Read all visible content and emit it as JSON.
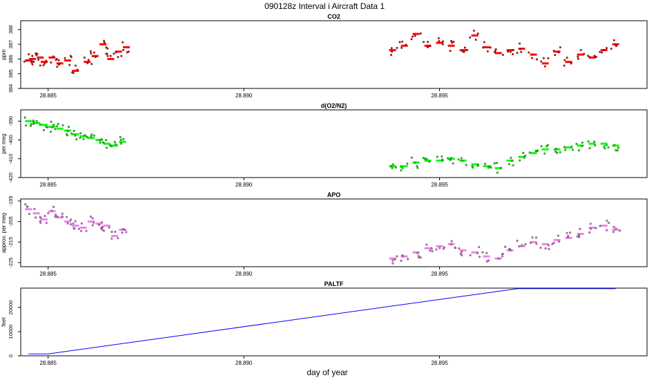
{
  "title": "090128z   Interval i Aircraft Data 1",
  "xlabel": "day of year",
  "x_ticks": [
    "28.885",
    "28.890",
    "28.895"
  ],
  "x_tick_values": [
    28.885,
    28.89,
    28.895
  ],
  "xlim": [
    28.8843,
    28.9003
  ],
  "colors": {
    "co2": "#ff0000",
    "o2n2": "#00ff00",
    "apo": "#ee82ee",
    "paltf": "#0000ff",
    "points_outline": "#000000"
  },
  "chart_data": [
    {
      "id": "co2",
      "type": "scatter",
      "title": "CO2",
      "ylabel": "ppm",
      "ylim": [
        384,
        388.6
      ],
      "y_ticks": [
        384,
        385,
        386,
        387,
        388
      ],
      "grid": false,
      "x": [
        28.8845,
        28.8846,
        28.8848,
        28.8849,
        28.8851,
        28.8853,
        28.8855,
        28.8857,
        28.886,
        28.8862,
        28.8864,
        28.8866,
        28.8868,
        28.887,
        28.8938,
        28.8941,
        28.8944,
        28.8947,
        28.895,
        28.8953,
        28.8956,
        28.8959,
        28.8962,
        28.8965,
        28.8968,
        28.8971,
        28.8974,
        28.8977,
        28.898,
        28.8983,
        28.8986,
        28.8989,
        28.8992,
        28.8995
      ],
      "y": [
        385.9,
        386.0,
        386.1,
        385.8,
        386.1,
        385.7,
        385.9,
        385.2,
        385.8,
        386.2,
        387.0,
        386.0,
        386.5,
        386.8,
        386.6,
        386.9,
        387.7,
        386.9,
        387.1,
        386.9,
        386.6,
        387.6,
        386.8,
        386.4,
        386.6,
        386.7,
        386.3,
        385.7,
        386.5,
        385.8,
        386.3,
        386.1,
        386.6,
        387.0
      ]
    },
    {
      "id": "o2n2",
      "type": "scatter",
      "title": "d(O2/N2)",
      "ylabel": "per meg",
      "ylim": [
        -420,
        -384
      ],
      "y_ticks": [
        -420,
        -410,
        -400,
        -390
      ],
      "grid": false,
      "x": [
        28.8845,
        28.8847,
        28.8849,
        28.8851,
        28.8853,
        28.8855,
        28.8857,
        28.8859,
        28.8861,
        28.8863,
        28.8865,
        28.8867,
        28.8869,
        28.8938,
        28.8941,
        28.8944,
        28.8947,
        28.895,
        28.8953,
        28.8956,
        28.8959,
        28.8962,
        28.8965,
        28.8968,
        28.8971,
        28.8974,
        28.8977,
        28.898,
        28.8983,
        28.8986,
        28.8989,
        28.8992,
        28.8995
      ],
      "y": [
        -390,
        -391,
        -392,
        -393,
        -394,
        -395,
        -397,
        -398,
        -399,
        -400,
        -402,
        -403,
        -401,
        -414,
        -414,
        -412,
        -411,
        -411,
        -410,
        -411,
        -413,
        -414,
        -415,
        -411,
        -409,
        -407,
        -405,
        -405,
        -404,
        -403,
        -402,
        -402,
        -403
      ]
    },
    {
      "id": "apo",
      "type": "scatter",
      "title": "APO",
      "ylabel": "approx. per meg",
      "ylim": [
        -227,
        -194
      ],
      "y_ticks": [
        -225,
        -215,
        -205,
        -195
      ],
      "grid": false,
      "x": [
        28.8845,
        28.8847,
        28.8849,
        28.8851,
        28.8853,
        28.8855,
        28.8857,
        28.8859,
        28.8861,
        28.8863,
        28.8865,
        28.8867,
        28.8869,
        28.8938,
        28.8941,
        28.8944,
        28.8947,
        28.895,
        28.8953,
        28.8956,
        28.8959,
        28.8962,
        28.8965,
        28.8968,
        28.8971,
        28.8974,
        28.8977,
        28.898,
        28.8983,
        28.8986,
        28.8989,
        28.8992,
        28.8995
      ],
      "y": [
        -199,
        -201,
        -204,
        -200,
        -203,
        -205,
        -207,
        -208,
        -205,
        -206,
        -207,
        -212,
        -209,
        -223,
        -222,
        -220,
        -218,
        -217,
        -216,
        -219,
        -220,
        -222,
        -223,
        -219,
        -217,
        -215,
        -216,
        -214,
        -213,
        -211,
        -208,
        -207,
        -209
      ]
    },
    {
      "id": "paltf",
      "type": "line",
      "title": "PALTF",
      "ylabel": "feet",
      "ylim": [
        0,
        28000
      ],
      "y_ticks": [
        0,
        10000,
        20000
      ],
      "grid": false,
      "x": [
        28.8845,
        28.885,
        28.897,
        28.8995
      ],
      "y": [
        800,
        800,
        27800,
        27800
      ]
    }
  ]
}
